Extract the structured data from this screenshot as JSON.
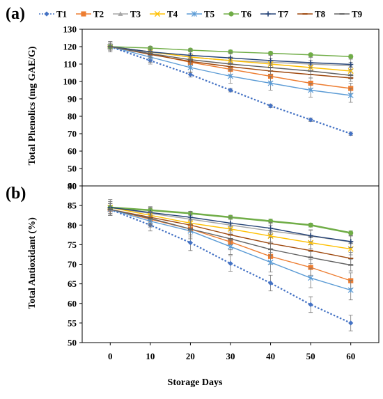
{
  "legend_entries": [
    {
      "name": "T1",
      "color": "#4472C4",
      "marker": "diamond",
      "dash": true
    },
    {
      "name": "T2",
      "color": "#ED7D31",
      "marker": "square",
      "dash": false
    },
    {
      "name": "T3",
      "color": "#A5A5A5",
      "marker": "triangle",
      "dash": false
    },
    {
      "name": "T4",
      "color": "#FFC000",
      "marker": "x",
      "dash": false
    },
    {
      "name": "T5",
      "color": "#5B9BD5",
      "marker": "star",
      "dash": false
    },
    {
      "name": "T6",
      "color": "#70AD47",
      "marker": "circle",
      "dash": false
    },
    {
      "name": "T7",
      "color": "#264478",
      "marker": "plus",
      "dash": false
    },
    {
      "name": "T8",
      "color": "#9E480E",
      "marker": "dash",
      "dash": false
    },
    {
      "name": "T9",
      "color": "#636363",
      "marker": "dash",
      "dash": false
    }
  ],
  "chart_data": [
    {
      "type": "line",
      "panel_label": "(a)",
      "title": "",
      "xlabel": "",
      "ylabel": "Total Phenolics (mg GAE/G)",
      "x": [
        0,
        10,
        20,
        30,
        40,
        50,
        60
      ],
      "xlim": [
        -7,
        67
      ],
      "ylim": [
        40,
        130
      ],
      "yticks": [
        40,
        50,
        60,
        70,
        80,
        90,
        100,
        110,
        120,
        130
      ],
      "grid": false,
      "series": [
        {
          "name": "T1",
          "values": [
            120,
            112,
            104,
            95,
            86,
            78,
            70
          ],
          "err": [
            2,
            2,
            1.5,
            1,
            1,
            1,
            1
          ]
        },
        {
          "name": "T2",
          "values": [
            120,
            116,
            111,
            107,
            103,
            99,
            96
          ],
          "err": [
            2,
            2,
            3,
            3,
            3,
            3,
            3
          ]
        },
        {
          "name": "T3",
          "values": [
            120,
            117,
            114,
            112,
            111,
            110,
            109
          ],
          "err": [
            2,
            2,
            2,
            2,
            2,
            2,
            2
          ]
        },
        {
          "name": "T4",
          "values": [
            120,
            117,
            114,
            112,
            110,
            108,
            106
          ],
          "err": [
            2,
            2,
            2,
            2,
            2,
            2,
            2
          ]
        },
        {
          "name": "T5",
          "values": [
            120,
            114,
            108,
            103,
            99,
            95,
            92
          ],
          "err": [
            3,
            3,
            3,
            4,
            4,
            4,
            4
          ]
        },
        {
          "name": "T6",
          "values": [
            120,
            119.2,
            118,
            117,
            116.2,
            115.3,
            114.3
          ],
          "err": [
            1,
            1,
            1,
            1,
            1,
            1,
            1
          ]
        },
        {
          "name": "T7",
          "values": [
            120,
            117,
            115,
            113.5,
            112,
            110.8,
            109.8
          ],
          "err": [
            3,
            3,
            3,
            3,
            3,
            3,
            3
          ]
        },
        {
          "name": "T8",
          "values": [
            120,
            115.5,
            111.5,
            108.5,
            106,
            104,
            102
          ],
          "err": [
            2,
            2,
            2,
            2,
            2,
            2,
            2
          ]
        },
        {
          "name": "T9",
          "values": [
            120,
            116,
            112.5,
            110,
            108,
            106,
            103.5
          ],
          "err": [
            2,
            2,
            2,
            2,
            2,
            2,
            2
          ]
        }
      ]
    },
    {
      "type": "line",
      "panel_label": "(b)",
      "title": "",
      "xlabel": "Storage Days",
      "ylabel": "Total Antioxidant (%)",
      "x": [
        0,
        10,
        20,
        30,
        40,
        50,
        60
      ],
      "xlim": [
        -7,
        67
      ],
      "ylim": [
        50,
        90
      ],
      "yticks": [
        50,
        55,
        60,
        65,
        70,
        75,
        80,
        85,
        90
      ],
      "xticks": [
        0,
        10,
        20,
        30,
        40,
        50,
        60
      ],
      "grid": false,
      "series": [
        {
          "name": "T1",
          "values": [
            84,
            80,
            75.5,
            70.2,
            65.2,
            59.7,
            55
          ],
          "err": [
            1.5,
            1.5,
            2,
            2,
            2,
            2,
            2
          ]
        },
        {
          "name": "T2",
          "values": [
            84,
            81.5,
            79,
            75.7,
            72,
            69.2,
            65.8
          ],
          "err": [
            1.5,
            1.5,
            2,
            2,
            2,
            2,
            2
          ]
        },
        {
          "name": "T3",
          "values": [
            84.5,
            83,
            81.5,
            80,
            78.5,
            77.2,
            75.7
          ],
          "err": [
            1.5,
            1.5,
            1.5,
            1.5,
            1.5,
            1.5,
            1.5
          ]
        },
        {
          "name": "T4",
          "values": [
            84.5,
            82.5,
            80.5,
            79,
            77.2,
            75.5,
            73.9
          ],
          "err": [
            1.5,
            1.5,
            1.5,
            1.5,
            1.5,
            1.5,
            1.5
          ]
        },
        {
          "name": "T5",
          "values": [
            84,
            81,
            78.5,
            74.5,
            70.5,
            66.5,
            63.4
          ],
          "err": [
            1.5,
            1.5,
            2,
            2,
            2.5,
            2.5,
            2.5
          ]
        },
        {
          "name": "T6",
          "values": [
            84.5,
            83.8,
            83,
            82,
            81,
            80,
            78
          ],
          "err": [
            0.5,
            0.5,
            0.5,
            0.5,
            0.5,
            0.5,
            0.5
          ]
        },
        {
          "name": "T7",
          "values": [
            84.5,
            83.2,
            82,
            80.5,
            79.2,
            77.3,
            75.8
          ],
          "err": [
            2,
            1.5,
            1.5,
            1.5,
            1.5,
            1.5,
            1.5
          ]
        },
        {
          "name": "T8",
          "values": [
            84,
            82,
            80,
            77.5,
            75.3,
            73.5,
            71.5
          ],
          "err": [
            1.5,
            1.5,
            1.5,
            1.5,
            1.5,
            1.5,
            1.5
          ]
        },
        {
          "name": "T9",
          "values": [
            84,
            81.7,
            79,
            76.5,
            73.8,
            71.7,
            69.8
          ],
          "err": [
            1.5,
            1.5,
            1.5,
            1.5,
            1.5,
            1.5,
            1.5
          ]
        }
      ]
    }
  ]
}
